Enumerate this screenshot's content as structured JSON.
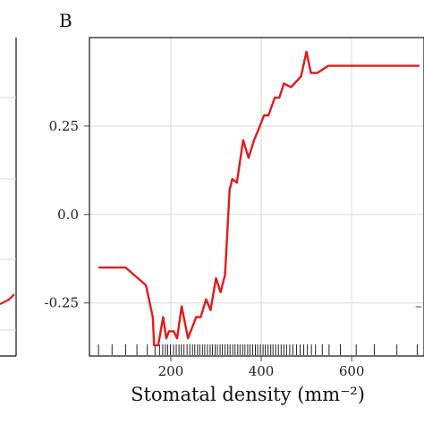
{
  "panel_label": "B",
  "left_panel_fragment": {
    "line_color": "#e31a1c"
  },
  "right_panel_fragment": {
    "mark": "–"
  },
  "chart_data": {
    "type": "line",
    "title": "",
    "xlabel": "Stomatal density (mm⁻²)",
    "ylabel": "",
    "xlim": [
      20,
      760
    ],
    "ylim": [
      -0.4,
      0.5
    ],
    "x_ticks": [
      200,
      400,
      600
    ],
    "x_tick_labels": [
      "200",
      "400",
      "600"
    ],
    "y_ticks": [
      -0.25,
      0.0,
      0.25
    ],
    "y_tick_labels": [
      "-0.25",
      "0.0",
      "0.25"
    ],
    "grid": true,
    "legend": "none",
    "line_color": "#e31a1c",
    "series": [
      {
        "x": [
          40,
          100,
          145,
          160,
          163,
          172,
          183,
          190,
          196,
          206,
          214,
          224,
          238,
          256,
          266,
          278,
          288,
          300,
          310,
          320,
          330,
          336,
          346,
          360,
          372,
          384,
          394,
          406,
          416,
          430,
          440,
          450,
          466,
          488,
          500,
          510,
          524,
          548,
          570,
          600,
          640,
          700,
          750
        ],
        "y": [
          -0.15,
          -0.15,
          -0.2,
          -0.29,
          -0.37,
          -0.37,
          -0.29,
          -0.35,
          -0.33,
          -0.33,
          -0.35,
          -0.26,
          -0.35,
          -0.29,
          -0.29,
          -0.24,
          -0.27,
          -0.18,
          -0.22,
          -0.17,
          0.07,
          0.1,
          0.09,
          0.21,
          0.16,
          0.21,
          0.24,
          0.28,
          0.28,
          0.33,
          0.33,
          0.37,
          0.36,
          0.39,
          0.46,
          0.4,
          0.4,
          0.42,
          0.42,
          0.42,
          0.42,
          0.42,
          0.42
        ]
      }
    ],
    "rug_x": [
      40,
      70,
      100,
      125,
      148,
      165,
      175,
      182,
      188,
      193,
      199,
      206,
      212,
      218,
      223,
      229,
      236,
      242,
      248,
      253,
      259,
      264,
      270,
      275,
      281,
      287,
      292,
      298,
      303,
      309,
      314,
      320,
      326,
      331,
      337,
      342,
      348,
      353,
      359,
      364,
      370,
      375,
      381,
      387,
      392,
      398,
      404,
      409,
      415,
      421,
      426,
      432,
      438,
      444,
      450,
      456,
      463,
      470,
      478,
      486,
      494,
      502,
      511,
      520,
      535,
      550,
      575,
      610,
      650,
      700,
      745
    ]
  }
}
